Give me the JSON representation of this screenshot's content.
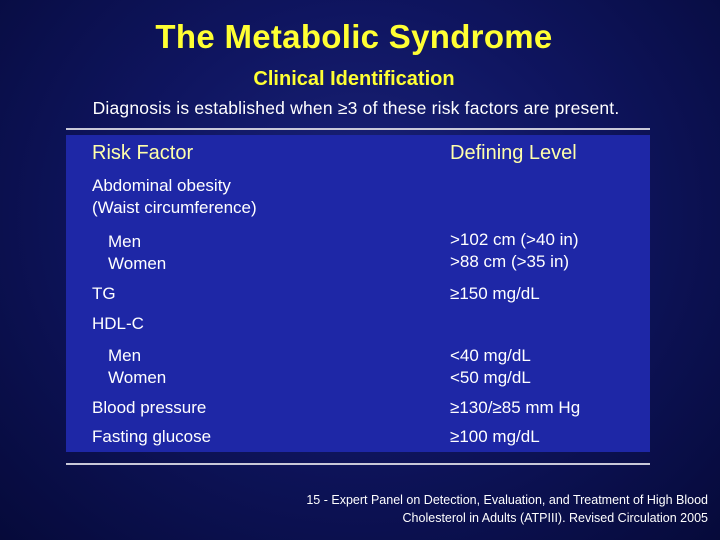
{
  "slide": {
    "title": "The Metabolic Syndrome",
    "subtitle": "Clinical Identification",
    "intro": "Diagnosis is established when ≥3 of these risk factors are present.",
    "colors": {
      "title": "#ffff33",
      "header_text": "#ffffaa",
      "table_bg": "#1e27a6",
      "background": "#0f1560"
    }
  },
  "table": {
    "headers": {
      "risk_factor": "Risk Factor",
      "defining_level": "Defining Level"
    },
    "rows": {
      "abdominal_1": "Abdominal obesity",
      "abdominal_2": "(Waist circumference)",
      "men": "Men",
      "women": "Women",
      "waist_men": ">102 cm (>40 in)",
      "waist_women": ">88 cm (>35 in)",
      "tg": "TG",
      "tg_value": "≥150 mg/dL",
      "hdl": "HDL-C",
      "hdl_men": "Men",
      "hdl_women": "Women",
      "hdl_men_value": "<40 mg/dL",
      "hdl_women_value": "<50 mg/dL",
      "bp": "Blood pressure",
      "bp_value": "≥130/≥85 mm Hg",
      "glucose": "Fasting glucose",
      "glucose_value": "≥100 mg/dL"
    }
  },
  "footnote": {
    "line1": "15 - Expert Panel on Detection, Evaluation, and Treatment of High Blood",
    "line2": "Cholesterol in Adults (ATPIII). Revised Circulation 2005"
  }
}
